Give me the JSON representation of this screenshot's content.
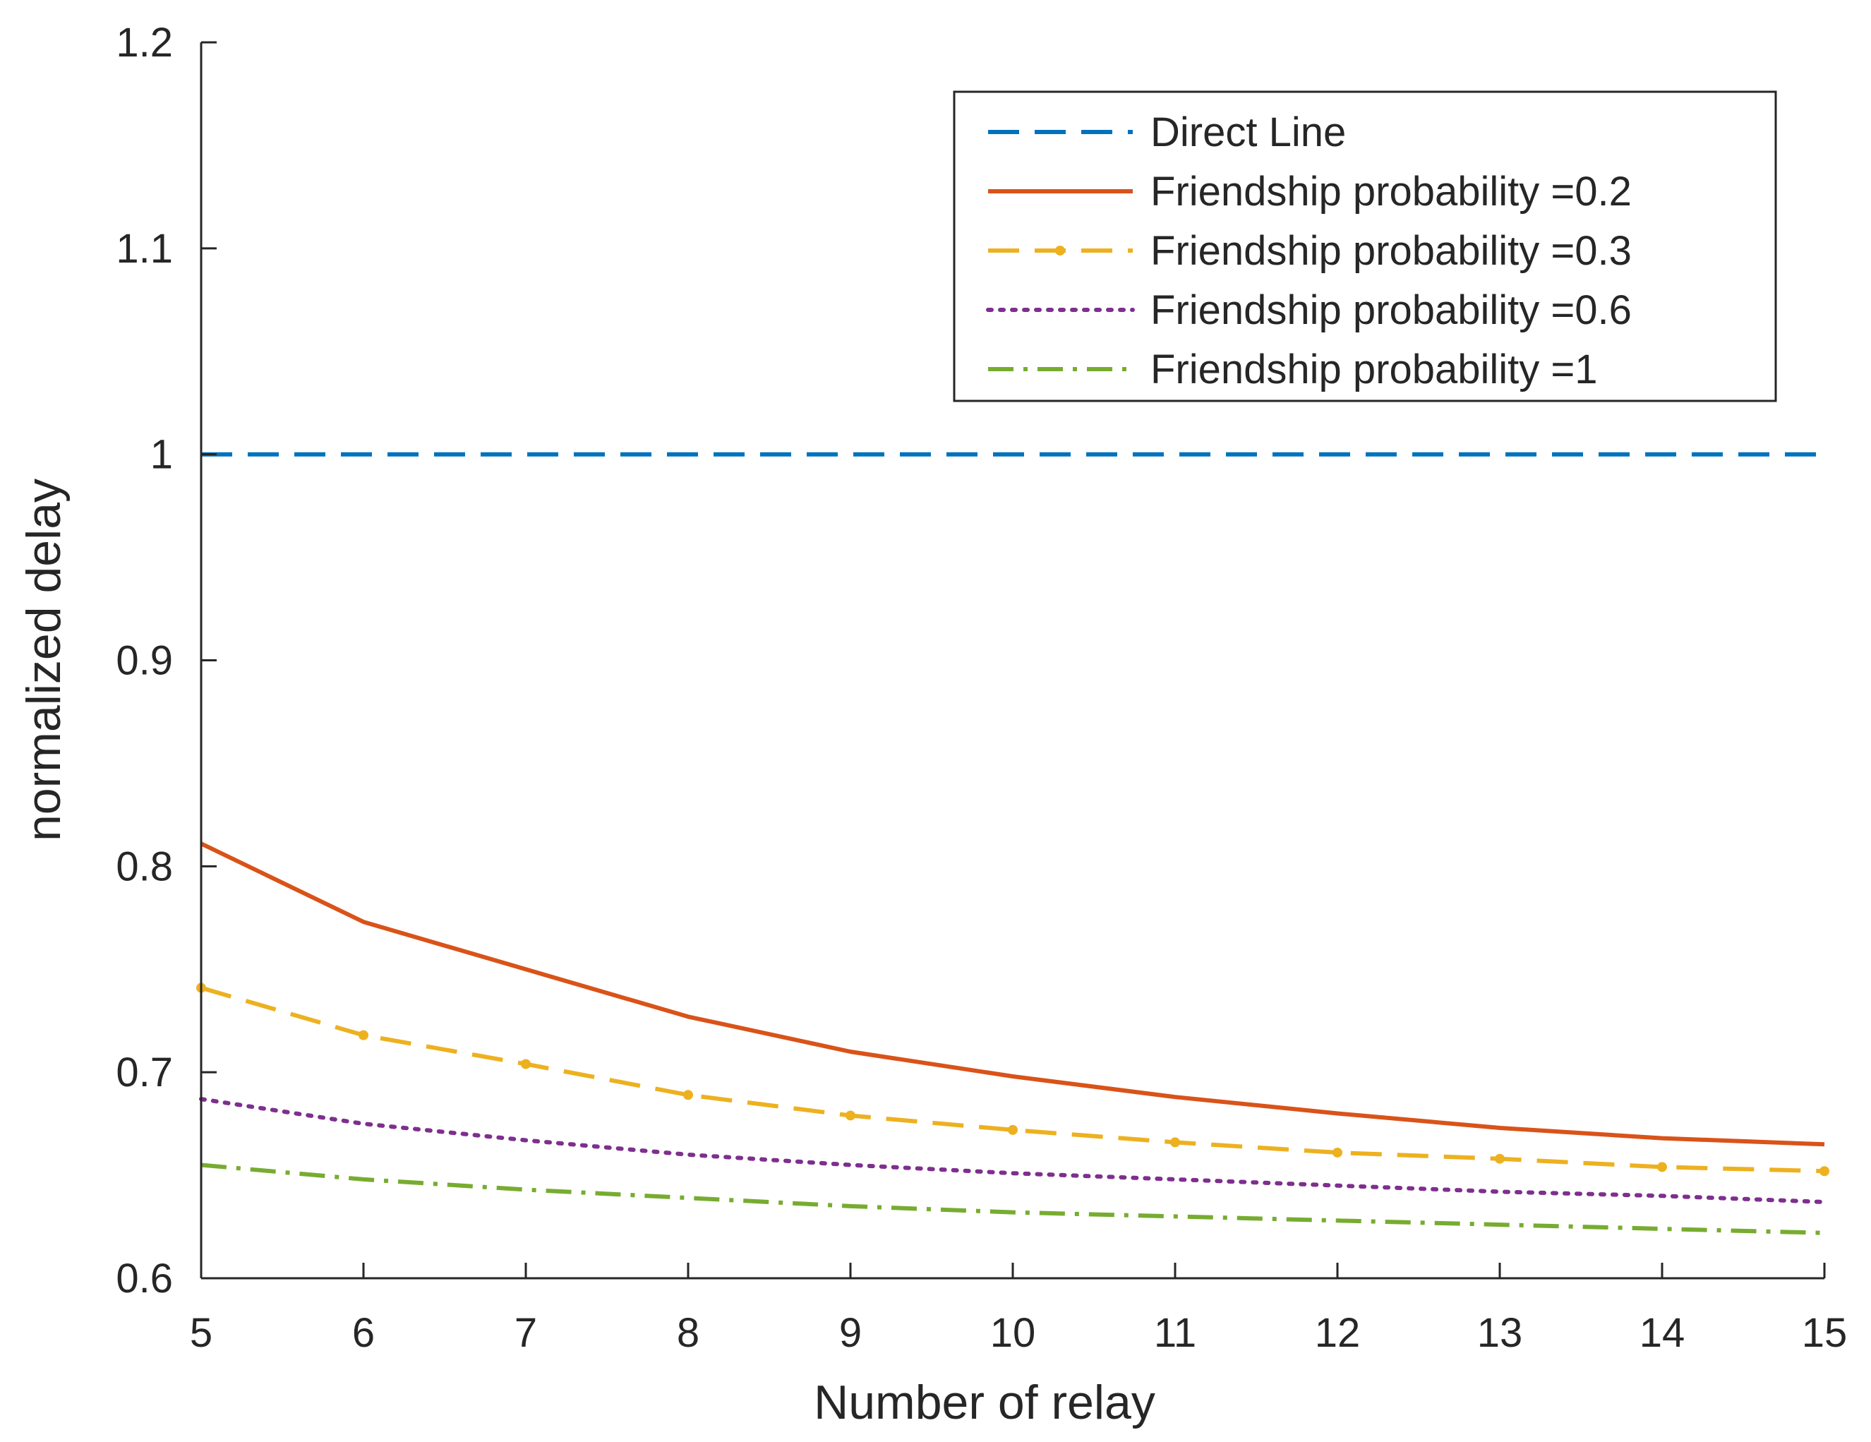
{
  "chart_data": {
    "type": "line",
    "title": "",
    "xlabel": "Number of relay",
    "ylabel": "normalized delay",
    "xlim": [
      5,
      15
    ],
    "ylim": [
      0.6,
      1.2
    ],
    "x": [
      5,
      6,
      7,
      8,
      9,
      10,
      11,
      12,
      13,
      14,
      15
    ],
    "xticks": [
      5,
      6,
      7,
      8,
      9,
      10,
      11,
      12,
      13,
      14,
      15
    ],
    "xtick_labels": [
      "5",
      "6",
      "7",
      "8",
      "9",
      "10",
      "11",
      "12",
      "13",
      "14",
      "15"
    ],
    "yticks": [
      0.6,
      0.7,
      0.8,
      0.9,
      1.0,
      1.1,
      1.2
    ],
    "ytick_labels": [
      "0.6",
      "0.7",
      "0.8",
      "0.9",
      "1",
      "1.1",
      "1.2"
    ],
    "grid": false,
    "legend_position": "top-right",
    "series": [
      {
        "name": "Direct Line",
        "style": "dashed",
        "marker": "none",
        "color": "#0072BD",
        "values": [
          1,
          1,
          1,
          1,
          1,
          1,
          1,
          1,
          1,
          1,
          1
        ]
      },
      {
        "name": "Friendship probability =0.2",
        "style": "solid",
        "marker": "none",
        "color": "#D95319",
        "values": [
          0.811,
          0.773,
          0.75,
          0.727,
          0.71,
          0.698,
          0.688,
          0.68,
          0.673,
          0.668,
          0.665
        ]
      },
      {
        "name": "Friendship probability =0.3",
        "style": "dashed",
        "marker": "dot",
        "color": "#EDB120",
        "values": [
          0.741,
          0.718,
          0.704,
          0.689,
          0.679,
          0.672,
          0.666,
          0.661,
          0.658,
          0.654,
          0.652
        ]
      },
      {
        "name": "Friendship probability =0.6",
        "style": "dotted",
        "marker": "none",
        "color": "#7E2F8E",
        "values": [
          0.687,
          0.675,
          0.667,
          0.66,
          0.655,
          0.651,
          0.648,
          0.645,
          0.642,
          0.64,
          0.637
        ]
      },
      {
        "name": "Friendship probability =1",
        "style": "dashdot",
        "marker": "none",
        "color": "#77AC30",
        "values": [
          0.655,
          0.648,
          0.643,
          0.639,
          0.635,
          0.632,
          0.63,
          0.628,
          0.626,
          0.624,
          0.622
        ]
      }
    ]
  }
}
